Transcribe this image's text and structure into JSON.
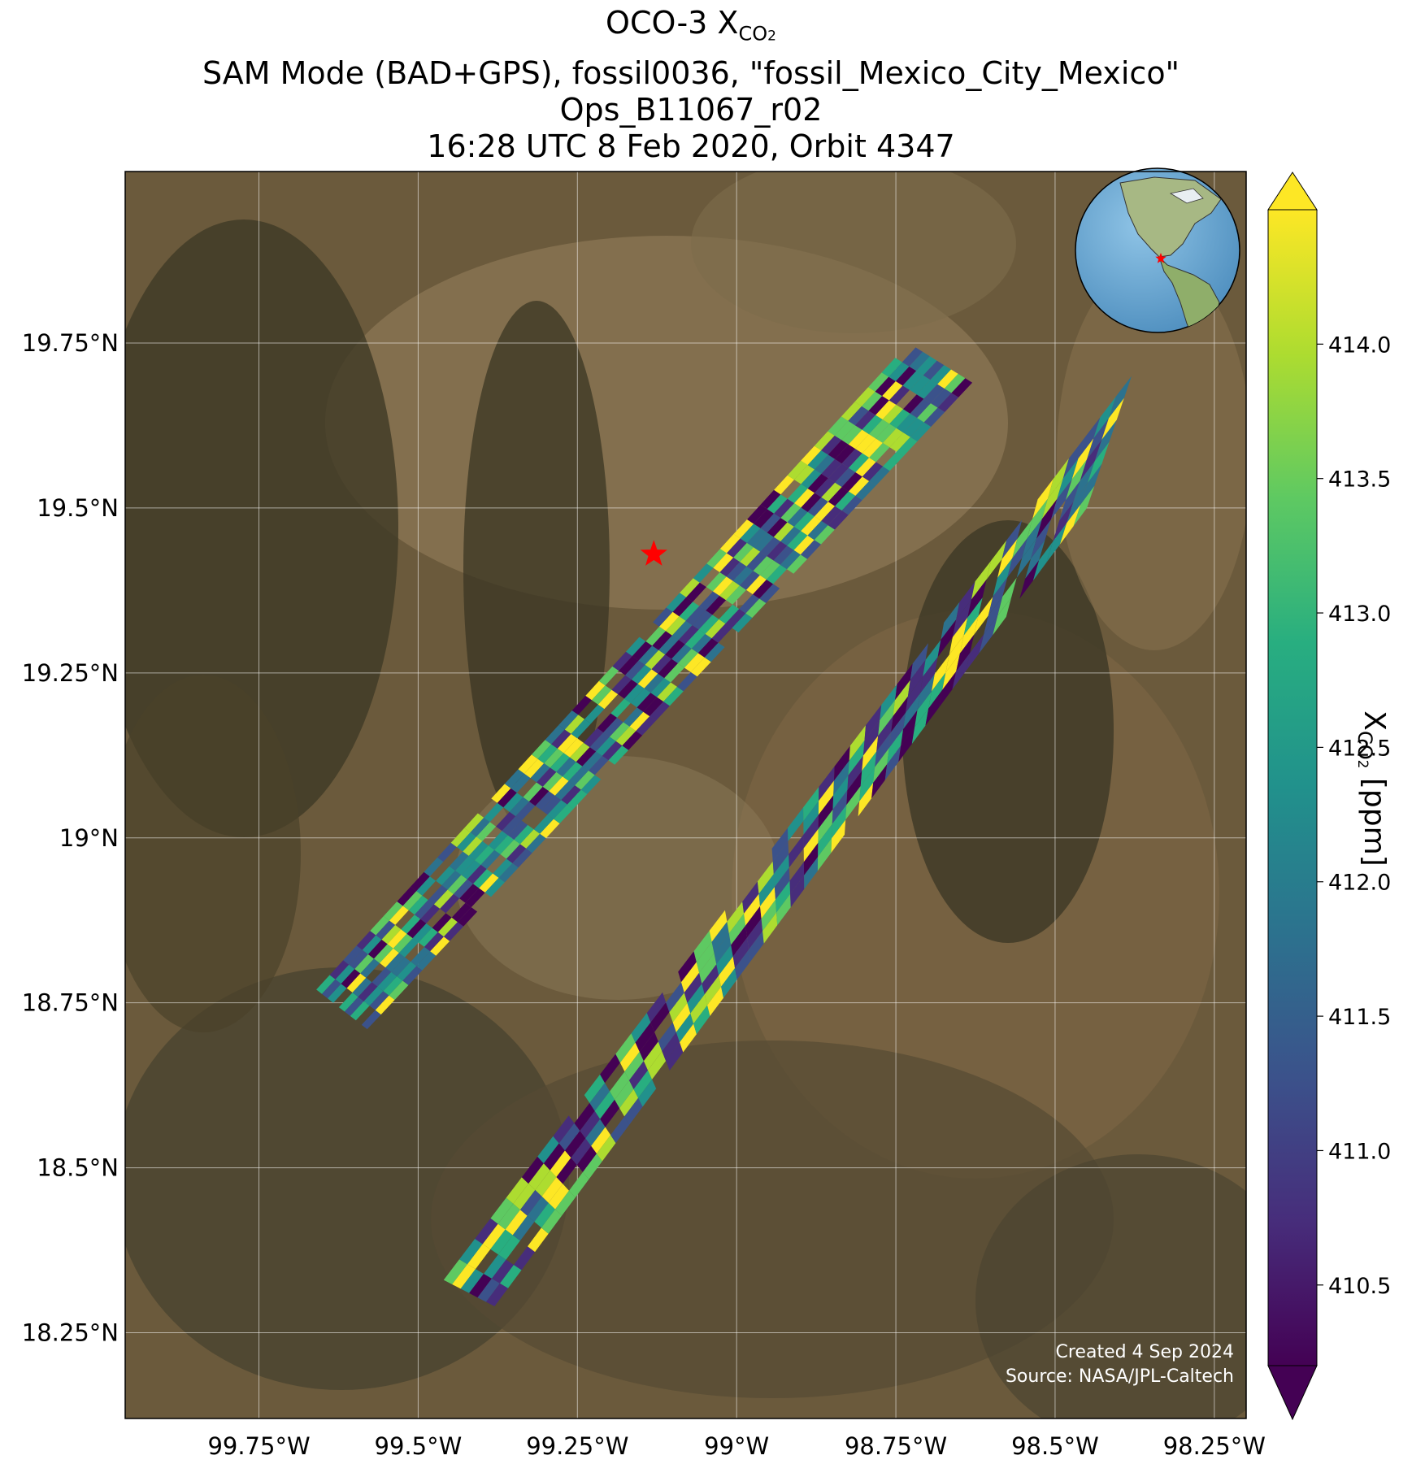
{
  "title": {
    "line1_prefix": "OCO-3 X",
    "line1_sub": "CO",
    "line1_sub2": "2",
    "line2": "SAM Mode (BAD+GPS), fossil0036, \"fossil_Mexico_City_Mexico\"",
    "line3": "Ops_B11067_r02",
    "line4": "16:28 UTC 8 Feb 2020, Orbit 4347"
  },
  "map": {
    "lon_range": [
      -99.96,
      -98.2
    ],
    "lat_range": [
      18.12,
      20.01
    ],
    "gridlines": true,
    "lon_ticks": [
      {
        "value": -99.75,
        "label": "99.75°W"
      },
      {
        "value": -99.5,
        "label": "99.5°W"
      },
      {
        "value": -99.25,
        "label": "99.25°W"
      },
      {
        "value": -99.0,
        "label": "99°W"
      },
      {
        "value": -98.75,
        "label": "98.75°W"
      },
      {
        "value": -98.5,
        "label": "98.5°W"
      },
      {
        "value": -98.25,
        "label": "98.25°W"
      }
    ],
    "lat_ticks": [
      {
        "value": 19.75,
        "label": "19.75°N"
      },
      {
        "value": 19.5,
        "label": "19.5°N"
      },
      {
        "value": 19.25,
        "label": "19.25°N"
      },
      {
        "value": 19.0,
        "label": "19°N"
      },
      {
        "value": 18.75,
        "label": "18.75°N"
      },
      {
        "value": 18.5,
        "label": "18.5°N"
      },
      {
        "value": 18.25,
        "label": "18.25°N"
      }
    ],
    "target": {
      "lon": -99.13,
      "lat": 19.43,
      "color": "#ff0000"
    },
    "background": "satellite imagery",
    "inset": "globe with red star over Mexico City"
  },
  "colorbar": {
    "colormap": "viridis",
    "min": 410.2,
    "max": 414.5,
    "extend": "both",
    "ticks": [
      {
        "value": 410.5,
        "label": "410.5"
      },
      {
        "value": 411.0,
        "label": "411.0"
      },
      {
        "value": 411.5,
        "label": "411.5"
      },
      {
        "value": 412.0,
        "label": "412.0"
      },
      {
        "value": 412.5,
        "label": "412.5"
      },
      {
        "value": 413.0,
        "label": "413.0"
      },
      {
        "value": 413.5,
        "label": "413.5"
      },
      {
        "value": 414.0,
        "label": "414.0"
      }
    ],
    "label_prefix": "X",
    "label_sub": "CO",
    "label_sub2": "2",
    "label_suffix": " [ppm]"
  },
  "credits": {
    "line1": "Created 4 Sep 2024",
    "line2": "Source: NASA/JPL-Caltech"
  },
  "swaths": [
    {
      "name": "upper swath",
      "corners": [
        [
          -99.66,
          18.77
        ],
        [
          -99.58,
          18.71
        ],
        [
          -98.63,
          19.69
        ],
        [
          -98.73,
          19.75
        ]
      ]
    },
    {
      "name": "lower swath",
      "corners": [
        [
          -99.46,
          18.33
        ],
        [
          -99.38,
          18.29
        ],
        [
          -98.45,
          19.5
        ],
        [
          -98.38,
          19.7
        ]
      ]
    }
  ]
}
